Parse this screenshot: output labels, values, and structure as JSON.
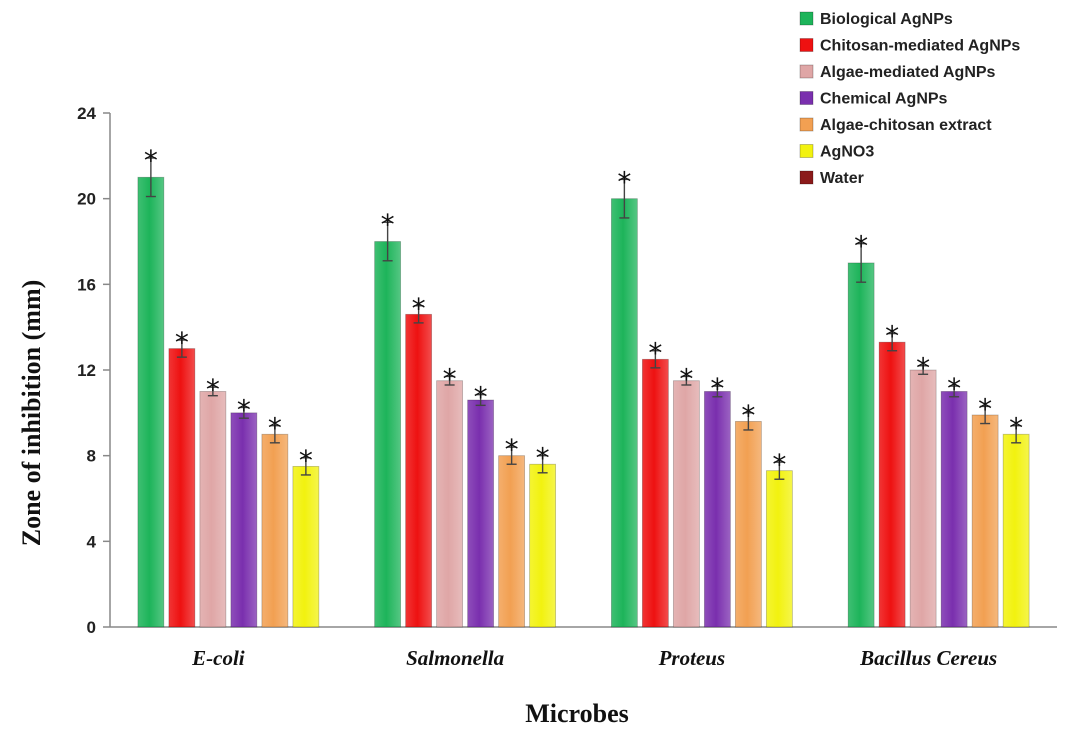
{
  "chart_data": {
    "type": "bar",
    "title": "",
    "xlabel": "Microbes",
    "ylabel": "Zone of inhibition (mm)",
    "ylim": [
      0,
      24
    ],
    "yticks": [
      0,
      4,
      8,
      12,
      16,
      20,
      24
    ],
    "grid": false,
    "legend_position": "top-right",
    "categories": [
      "E-coli",
      "Salmonella",
      "Proteus",
      "Bacillus Cereus"
    ],
    "significance_marker": "*",
    "series": [
      {
        "name": "Biological AgNPs",
        "color": "#1db45a",
        "values": [
          21,
          18,
          20,
          17
        ],
        "errors": [
          0.9,
          0.9,
          0.9,
          0.9
        ]
      },
      {
        "name": "Chitosan-mediated AgNPs",
        "color": "#ee1111",
        "values": [
          13,
          14.6,
          12.5,
          13.3
        ],
        "errors": [
          0.4,
          0.4,
          0.4,
          0.4
        ]
      },
      {
        "name": "Algae-mediated AgNPs",
        "color": "#dfa6a6",
        "values": [
          11,
          11.5,
          11.5,
          12
        ],
        "errors": [
          0.2,
          0.2,
          0.2,
          0.2
        ]
      },
      {
        "name": "Chemical AgNPs",
        "color": "#7a2fae",
        "values": [
          10,
          10.6,
          11,
          11
        ],
        "errors": [
          0.25,
          0.25,
          0.25,
          0.25
        ]
      },
      {
        "name": "Algae-chitosan extract",
        "color": "#f2a052",
        "values": [
          9,
          8,
          9.6,
          9.9
        ],
        "errors": [
          0.4,
          0.4,
          0.4,
          0.4
        ]
      },
      {
        "name": "AgNO3",
        "color": "#f2f20f",
        "values": [
          7.5,
          7.6,
          7.3,
          9
        ],
        "errors": [
          0.4,
          0.4,
          0.4,
          0.4
        ]
      },
      {
        "name": "Water",
        "color": "#8b1a1a",
        "values": [
          0,
          0,
          0,
          0
        ],
        "errors": [
          0,
          0,
          0,
          0
        ]
      }
    ]
  }
}
